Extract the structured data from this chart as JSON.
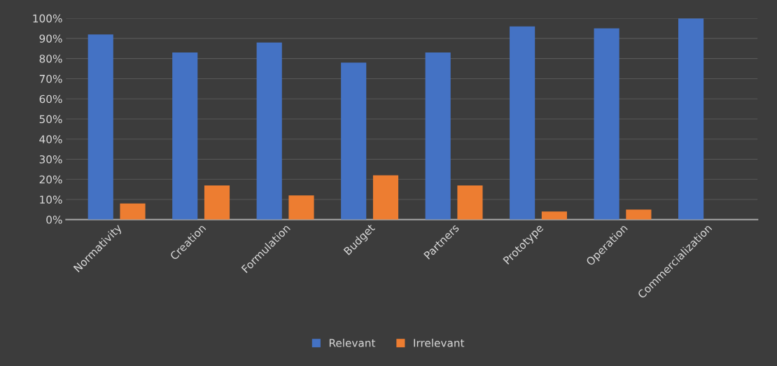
{
  "chart_data": {
    "type": "bar",
    "categories": [
      "Normativity",
      "Creation",
      "Formulation",
      "Budget",
      "Partners",
      "Prototype",
      "Operation",
      "Commercialization"
    ],
    "series": [
      {
        "name": "Relevant",
        "color": "#4472c4",
        "values": [
          92,
          83,
          88,
          78,
          83,
          96,
          95,
          100
        ]
      },
      {
        "name": "Irrelevant",
        "color": "#ed7d31",
        "values": [
          8,
          17,
          12,
          22,
          17,
          4,
          5,
          0
        ]
      }
    ],
    "ylim": [
      0,
      100
    ],
    "yticks": [
      {
        "value": 0,
        "label": "0%"
      },
      {
        "value": 10,
        "label": "10%"
      },
      {
        "value": 20,
        "label": "20%"
      },
      {
        "value": 30,
        "label": "30%"
      },
      {
        "value": 40,
        "label": "40%"
      },
      {
        "value": 50,
        "label": "50%"
      },
      {
        "value": 60,
        "label": "60%"
      },
      {
        "value": 70,
        "label": "70%"
      },
      {
        "value": 80,
        "label": "80%"
      },
      {
        "value": 90,
        "label": "90%"
      },
      {
        "value": 100,
        "label": "100%"
      }
    ],
    "grid": "y",
    "legend": "bottom"
  }
}
